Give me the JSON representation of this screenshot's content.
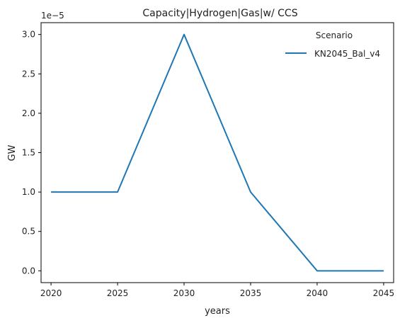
{
  "chart_data": {
    "type": "line",
    "title": "Capacity|Hydrogen|Gas|w/ CCS",
    "xlabel": "years",
    "ylabel": "GW",
    "y_offset_label": "1e−5",
    "x": [
      2020,
      2025,
      2030,
      2035,
      2040,
      2045
    ],
    "xlim": [
      2019.25,
      2045.75
    ],
    "ylim": [
      -0.15,
      3.15
    ],
    "x_ticks": [
      2020,
      2025,
      2030,
      2035,
      2040,
      2045
    ],
    "x_tick_labels": [
      "2020",
      "2025",
      "2030",
      "2035",
      "2040",
      "2045"
    ],
    "y_ticks": [
      0.0,
      0.5,
      1.0,
      1.5,
      2.0,
      2.5,
      3.0
    ],
    "y_tick_labels": [
      "0.0",
      "0.5",
      "1.0",
      "1.5",
      "2.0",
      "2.5",
      "3.0"
    ],
    "grid": false,
    "legend": {
      "title": "Scenario",
      "placement": "top-right"
    },
    "series": [
      {
        "name": "KN2045_Bal_v4",
        "color": "#1f77b4",
        "values": [
          1.0,
          1.0,
          3.0,
          1.0,
          0.0,
          0.0
        ]
      }
    ]
  }
}
